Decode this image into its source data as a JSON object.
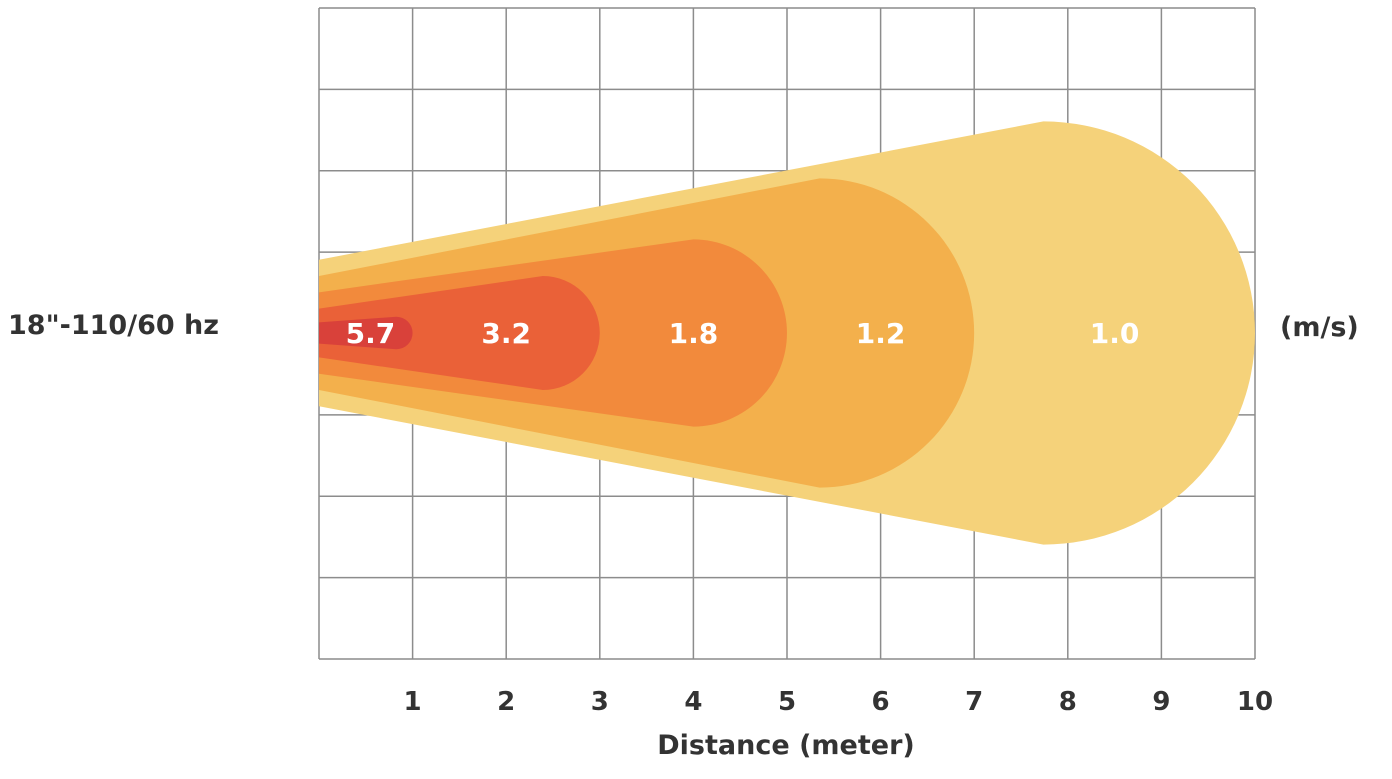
{
  "chart_data": {
    "type": "area",
    "series_label": "18\"-110/60 hz",
    "unit_label": "(m/s)",
    "xlabel": "Distance (meter)",
    "x_ticks": [
      "1",
      "2",
      "3",
      "4",
      "5",
      "6",
      "7",
      "8",
      "9",
      "10"
    ],
    "xlim": [
      0,
      10
    ],
    "grid": true,
    "zones": [
      {
        "label": "1.0",
        "reach": 10.0,
        "base_halfwidth": 0.9,
        "head_halfwidth": 2.6,
        "color": "#F5D27A"
      },
      {
        "label": "1.2",
        "reach": 7.0,
        "base_halfwidth": 0.7,
        "head_halfwidth": 1.9,
        "color": "#F3B04C"
      },
      {
        "label": "1.8",
        "reach": 5.0,
        "base_halfwidth": 0.5,
        "head_halfwidth": 1.15,
        "color": "#F28A3C"
      },
      {
        "label": "3.2",
        "reach": 3.0,
        "base_halfwidth": 0.3,
        "head_halfwidth": 0.7,
        "color": "#EA6138"
      },
      {
        "label": "5.7",
        "reach": 1.0,
        "base_halfwidth": 0.13,
        "head_halfwidth": 0.2,
        "color": "#D9413A"
      }
    ],
    "colors": {
      "grid": "#8c8c8c",
      "text": "#333333",
      "zone_label": "#ffffff"
    }
  }
}
